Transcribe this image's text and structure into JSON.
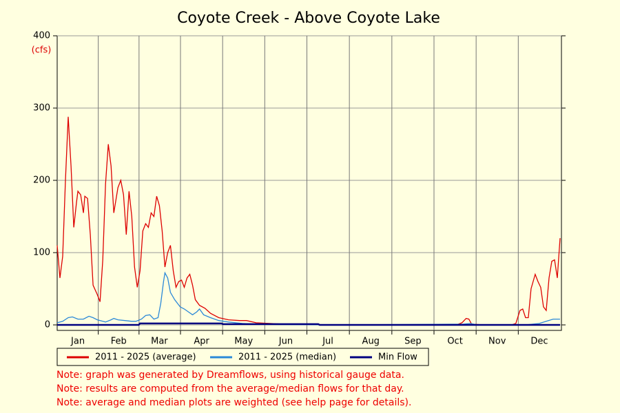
{
  "chart_data": {
    "type": "line",
    "title": "Coyote Creek - Above Coyote Lake",
    "y_unit": "(cfs)",
    "xlim": [
      1,
      366
    ],
    "ylim": [
      0,
      400
    ],
    "yticks": [
      0,
      100,
      200,
      300,
      400
    ],
    "xticks": [
      {
        "value": 16,
        "label": "Jan"
      },
      {
        "value": 45.5,
        "label": "Feb"
      },
      {
        "value": 75,
        "label": "Mar"
      },
      {
        "value": 105.5,
        "label": "Apr"
      },
      {
        "value": 136,
        "label": "May"
      },
      {
        "value": 166.5,
        "label": "Jun"
      },
      {
        "value": 197,
        "label": "Jul"
      },
      {
        "value": 228,
        "label": "Aug"
      },
      {
        "value": 258.5,
        "label": "Sep"
      },
      {
        "value": 289,
        "label": "Oct"
      },
      {
        "value": 319.5,
        "label": "Nov"
      },
      {
        "value": 350,
        "label": "Dec"
      }
    ],
    "grid": true,
    "series": [
      {
        "name": "2011 - 2025 (average)",
        "color": "#dd0000",
        "x": [
          1,
          3,
          5,
          7,
          9,
          11,
          13,
          15,
          16,
          18,
          20,
          21,
          23,
          25,
          27,
          30,
          32,
          34,
          36,
          38,
          40,
          42,
          45,
          47,
          49,
          51,
          53,
          55,
          57,
          59,
          61,
          63,
          65,
          67,
          69,
          71,
          73,
          75,
          77,
          79,
          81,
          83,
          85,
          87,
          89,
          91,
          93,
          95,
          97,
          99,
          101,
          104,
          108,
          112,
          118,
          125,
          133,
          138,
          145,
          155,
          165,
          180,
          200,
          290,
          294,
          297,
          299,
          301,
          310,
          330,
          333,
          336,
          338,
          340,
          342,
          344,
          347,
          349,
          351,
          353,
          355,
          357,
          359,
          361,
          363,
          365
        ],
        "values": [
          110,
          65,
          95,
          200,
          288,
          220,
          135,
          170,
          185,
          180,
          155,
          178,
          175,
          125,
          55,
          42,
          32,
          90,
          195,
          250,
          220,
          155,
          190,
          200,
          180,
          125,
          185,
          150,
          80,
          52,
          75,
          130,
          140,
          135,
          155,
          150,
          178,
          165,
          130,
          80,
          100,
          110,
          75,
          52,
          60,
          62,
          52,
          65,
          70,
          55,
          35,
          27,
          23,
          16,
          10,
          7,
          6,
          6,
          3,
          2,
          1,
          0.5,
          0,
          0,
          3,
          9,
          8,
          1,
          0,
          0,
          2,
          20,
          22,
          10,
          10,
          50,
          70,
          60,
          52,
          25,
          20,
          65,
          88,
          90,
          65,
          120
        ]
      },
      {
        "name": "2011 - 2025 (median)",
        "color": "#2a88d8",
        "x": [
          1,
          5,
          9,
          12,
          16,
          20,
          24,
          27,
          30,
          34,
          36,
          40,
          42,
          45,
          50,
          55,
          58,
          62,
          65,
          68,
          71,
          74,
          76,
          78,
          79,
          81,
          83,
          86,
          90,
          93,
          96,
          99,
          102,
          104,
          107,
          112,
          118,
          125,
          135,
          145,
          160,
          180,
          200,
          295,
          300,
          305,
          340,
          350,
          355,
          360,
          365
        ],
        "values": [
          3,
          5,
          10,
          11,
          8,
          8,
          12,
          10,
          7,
          5,
          4,
          7,
          9,
          7,
          6,
          5,
          5,
          8,
          13,
          14,
          8,
          10,
          30,
          60,
          72,
          65,
          45,
          35,
          25,
          22,
          18,
          14,
          18,
          22,
          14,
          10,
          6,
          4,
          2,
          1,
          0.5,
          0.3,
          0,
          1,
          2,
          0,
          0,
          2,
          5,
          8,
          8
        ]
      },
      {
        "name": "Min Flow",
        "color": "#000080",
        "x": [
          1,
          60,
          61,
          120,
          121,
          190,
          191,
          365
        ],
        "values": [
          0,
          0,
          2,
          2,
          1,
          1,
          0,
          0
        ]
      }
    ],
    "notes": [
      "Note: graph was generated by Dreamflows, using historical gauge data.",
      "Note: results are computed from the average/median flows for that day.",
      "Note: average and median plots are weighted (see help page for details)."
    ]
  }
}
